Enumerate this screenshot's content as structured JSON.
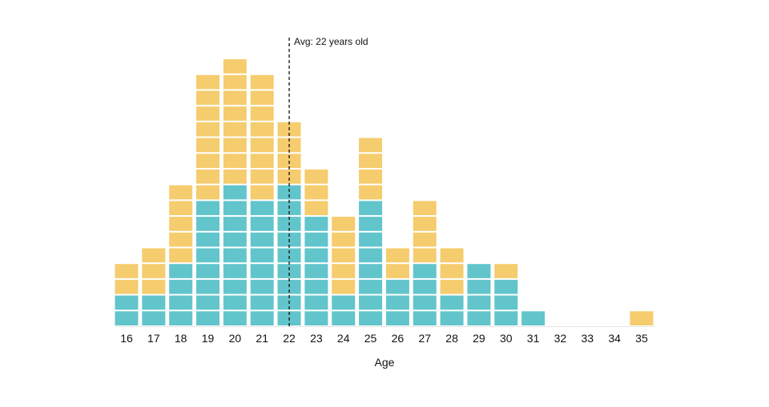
{
  "chart_data": {
    "type": "bar",
    "stacked": true,
    "unit_blocks": true,
    "xlabel": "Age",
    "categories": [
      "16",
      "17",
      "18",
      "19",
      "20",
      "21",
      "22",
      "23",
      "24",
      "25",
      "26",
      "27",
      "28",
      "29",
      "30",
      "31",
      "32",
      "33",
      "34",
      "35"
    ],
    "series": [
      {
        "color": "#62c5cc",
        "values": [
          2,
          2,
          4,
          8,
          9,
          8,
          9,
          7,
          2,
          8,
          3,
          4,
          2,
          4,
          3,
          1,
          0,
          0,
          0,
          0
        ]
      },
      {
        "color": "#f5cc6e",
        "values": [
          2,
          3,
          5,
          8,
          8,
          8,
          4,
          3,
          5,
          4,
          2,
          4,
          3,
          0,
          1,
          0,
          0,
          0,
          0,
          1
        ]
      }
    ],
    "annotation": {
      "label": "Avg: 22 years old",
      "x": "22"
    },
    "grid": false
  }
}
